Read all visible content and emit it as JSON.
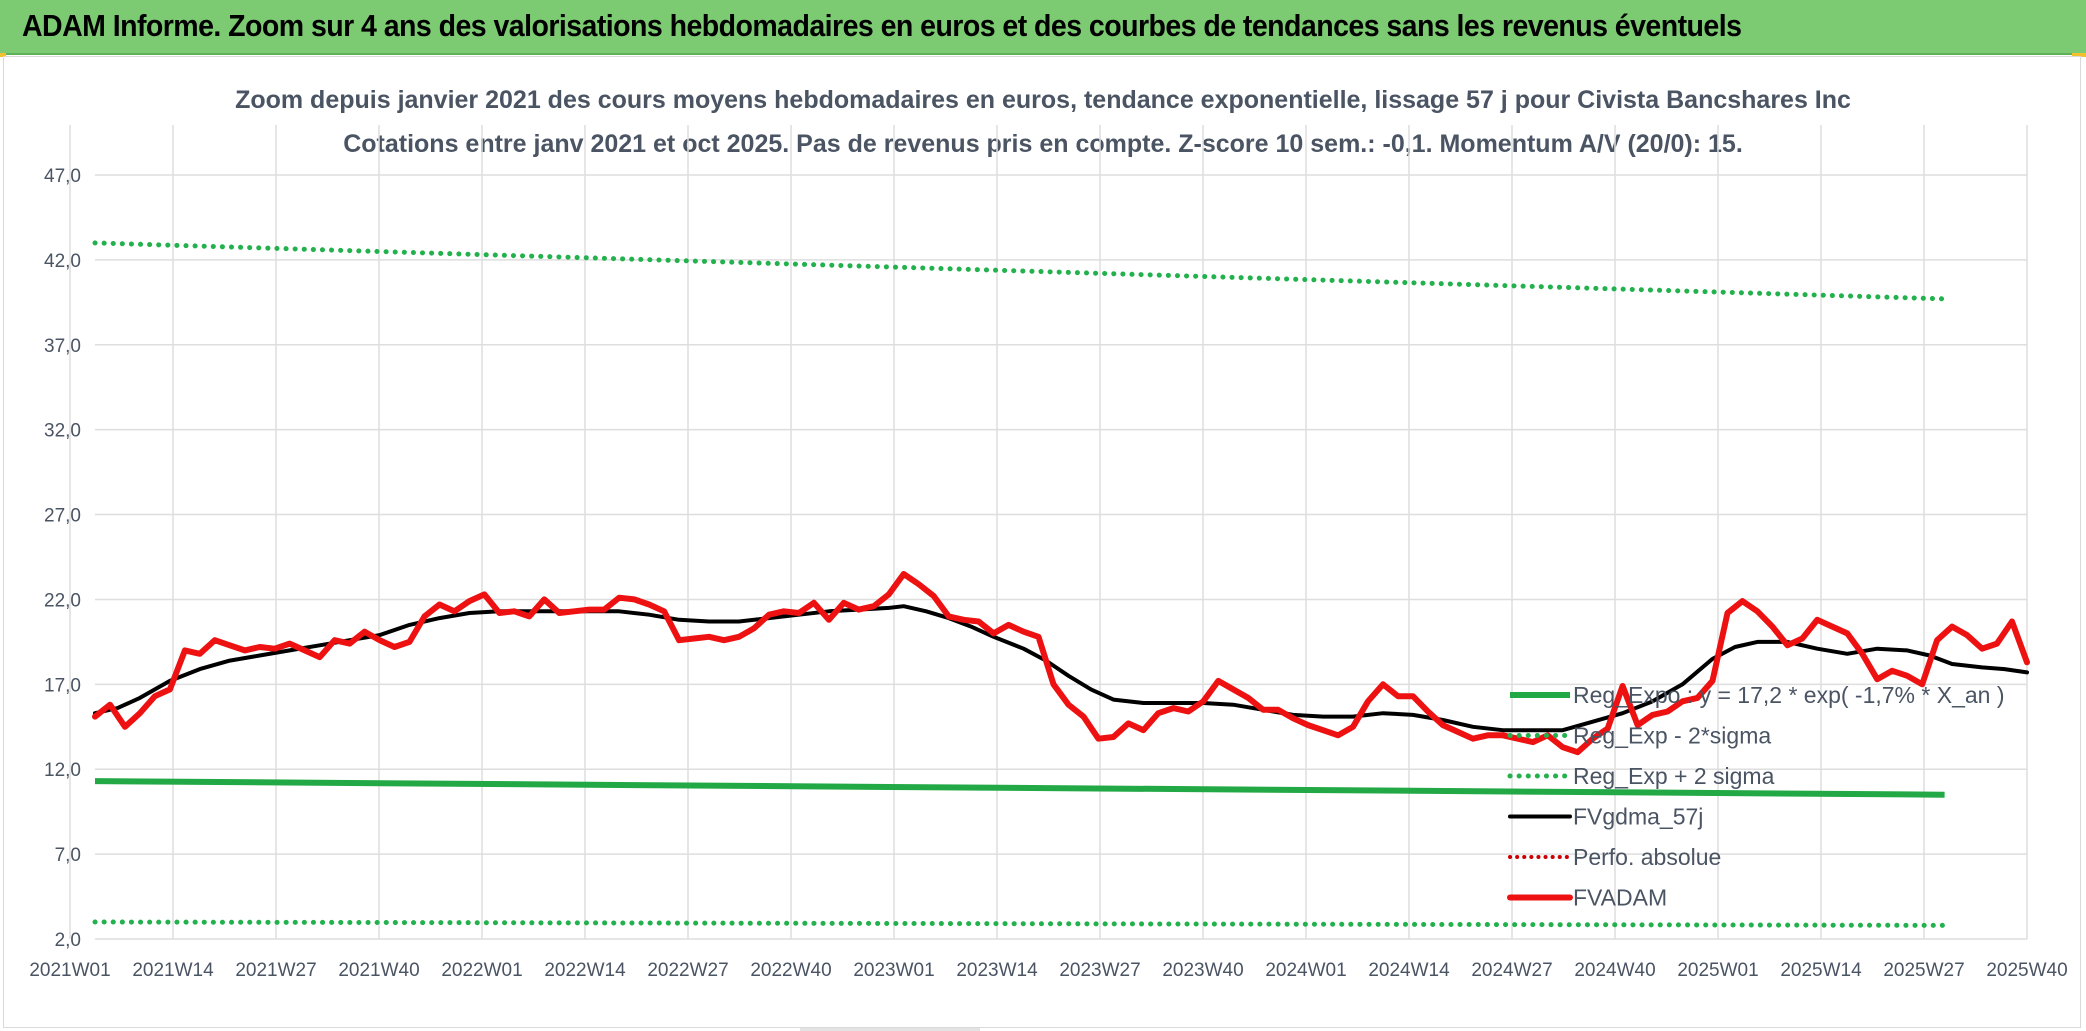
{
  "banner": {
    "title": "ADAM Informe. Zoom sur 4 ans des valorisations hebdomadaires en euros et des courbes de tendances sans les revenus éventuels"
  },
  "colors": {
    "banner_bg": "#7ccb72",
    "grid": "#dedede",
    "reg_expo": "#22a845",
    "sigma_bands": "#22b14c",
    "fvgdma": "#000000",
    "fvadam": "#ee1111",
    "perfo": "#cc0000"
  },
  "chart_data": {
    "type": "line",
    "title": "Zoom depuis janvier 2021 des cours moyens hebdomadaires en euros, tendance exponentielle, lissage 57 j pour Civista Bancshares Inc",
    "subtitle": "Cotations entre janv 2021 et oct 2025. Pas de revenus pris en compte. Z-score 10 sem.: -0,1. Momentum A/V (20/0): 15.",
    "xlabel": "",
    "ylabel": "",
    "ylim": [
      2.0,
      47.0
    ],
    "y_ticks": [
      "47,0",
      "42,0",
      "37,0",
      "32,0",
      "27,0",
      "22,0",
      "17,0",
      "12,0",
      "7,0",
      "2,0"
    ],
    "y_tick_values": [
      47,
      42,
      37,
      32,
      27,
      22,
      17,
      12,
      7,
      2
    ],
    "x_ticks": [
      "2021W01",
      "2021W14",
      "2021W27",
      "2021W40",
      "2022W01",
      "2022W14",
      "2022W27",
      "2022W40",
      "2023W01",
      "2023W14",
      "2023W27",
      "2023W40",
      "2024W01",
      "2024W14",
      "2024W27",
      "2024W40",
      "2025W01",
      "2025W14",
      "2025W27",
      "2025W40"
    ],
    "xlim": [
      0,
      247
    ],
    "legend_position": "right",
    "series": [
      {
        "name": "Reg_Expo : y = 17,2 * exp( -1,7% *  X_an )",
        "key": "reg_expo",
        "style": "solid-thick",
        "points": [
          [
            0,
            11.3
          ],
          [
            247,
            10.5
          ]
        ]
      },
      {
        "name": "Reg_Exp - 2*sigma",
        "key": "reg_minus",
        "style": "dotted",
        "points": [
          [
            0,
            3.0
          ],
          [
            247,
            2.8
          ]
        ]
      },
      {
        "name": "Reg_Exp + 2 sigma",
        "key": "reg_plus",
        "style": "dotted",
        "points": [
          [
            0,
            43.0
          ],
          [
            247,
            39.7
          ]
        ]
      },
      {
        "name": "FVgdma_57j",
        "key": "fvgdma",
        "style": "solid",
        "points": [
          [
            0,
            15.3
          ],
          [
            3,
            15.6
          ],
          [
            6,
            16.2
          ],
          [
            10,
            17.2
          ],
          [
            14,
            17.9
          ],
          [
            18,
            18.4
          ],
          [
            22,
            18.7
          ],
          [
            26,
            19.0
          ],
          [
            30,
            19.3
          ],
          [
            34,
            19.6
          ],
          [
            38,
            19.9
          ],
          [
            42,
            20.5
          ],
          [
            46,
            20.9
          ],
          [
            50,
            21.2
          ],
          [
            54,
            21.3
          ],
          [
            58,
            21.3
          ],
          [
            62,
            21.3
          ],
          [
            66,
            21.3
          ],
          [
            70,
            21.3
          ],
          [
            74,
            21.1
          ],
          [
            78,
            20.8
          ],
          [
            82,
            20.7
          ],
          [
            86,
            20.7
          ],
          [
            90,
            20.9
          ],
          [
            94,
            21.1
          ],
          [
            98,
            21.3
          ],
          [
            102,
            21.4
          ],
          [
            106,
            21.5
          ],
          [
            108,
            21.6
          ],
          [
            111,
            21.3
          ],
          [
            114,
            20.9
          ],
          [
            117,
            20.4
          ],
          [
            120,
            19.8
          ],
          [
            124,
            19.1
          ],
          [
            127,
            18.4
          ],
          [
            130,
            17.5
          ],
          [
            133,
            16.7
          ],
          [
            136,
            16.1
          ],
          [
            140,
            15.9
          ],
          [
            144,
            15.9
          ],
          [
            148,
            15.9
          ],
          [
            152,
            15.8
          ],
          [
            156,
            15.5
          ],
          [
            160,
            15.2
          ],
          [
            164,
            15.1
          ],
          [
            168,
            15.1
          ],
          [
            172,
            15.3
          ],
          [
            176,
            15.2
          ],
          [
            180,
            14.9
          ],
          [
            184,
            14.5
          ],
          [
            188,
            14.3
          ],
          [
            192,
            14.3
          ],
          [
            196,
            14.3
          ],
          [
            200,
            14.8
          ],
          [
            204,
            15.3
          ],
          [
            208,
            16.0
          ],
          [
            212,
            17.0
          ],
          [
            216,
            18.5
          ],
          [
            219,
            19.2
          ],
          [
            222,
            19.5
          ],
          [
            226,
            19.5
          ],
          [
            230,
            19.1
          ],
          [
            234,
            18.8
          ],
          [
            238,
            19.1
          ],
          [
            242,
            19.0
          ],
          [
            245,
            18.7
          ],
          [
            248,
            18.2
          ],
          [
            252,
            18.0
          ],
          [
            255,
            17.9
          ],
          [
            258,
            17.7
          ]
        ]
      },
      {
        "name": "Perfo. absolue",
        "key": "perfo",
        "style": "dotted-red",
        "points": []
      },
      {
        "name": "FVADAM",
        "key": "fvadam",
        "style": "solid-thick-red",
        "points": [
          [
            0,
            15.1
          ],
          [
            2,
            15.8
          ],
          [
            4,
            14.5
          ],
          [
            6,
            15.3
          ],
          [
            8,
            16.3
          ],
          [
            10,
            16.7
          ],
          [
            12,
            19.0
          ],
          [
            14,
            18.8
          ],
          [
            16,
            19.6
          ],
          [
            18,
            19.3
          ],
          [
            20,
            19.0
          ],
          [
            22,
            19.2
          ],
          [
            24,
            19.1
          ],
          [
            26,
            19.4
          ],
          [
            28,
            19.0
          ],
          [
            30,
            18.6
          ],
          [
            32,
            19.6
          ],
          [
            34,
            19.4
          ],
          [
            36,
            20.1
          ],
          [
            38,
            19.6
          ],
          [
            40,
            19.2
          ],
          [
            42,
            19.5
          ],
          [
            44,
            21.0
          ],
          [
            46,
            21.7
          ],
          [
            48,
            21.3
          ],
          [
            50,
            21.9
          ],
          [
            52,
            22.3
          ],
          [
            54,
            21.2
          ],
          [
            56,
            21.3
          ],
          [
            58,
            21.0
          ],
          [
            60,
            22.0
          ],
          [
            62,
            21.2
          ],
          [
            64,
            21.3
          ],
          [
            66,
            21.4
          ],
          [
            68,
            21.4
          ],
          [
            70,
            22.1
          ],
          [
            72,
            22.0
          ],
          [
            74,
            21.7
          ],
          [
            76,
            21.3
          ],
          [
            78,
            19.6
          ],
          [
            80,
            19.7
          ],
          [
            82,
            19.8
          ],
          [
            84,
            19.6
          ],
          [
            86,
            19.8
          ],
          [
            88,
            20.3
          ],
          [
            90,
            21.1
          ],
          [
            92,
            21.3
          ],
          [
            94,
            21.2
          ],
          [
            96,
            21.8
          ],
          [
            98,
            20.8
          ],
          [
            100,
            21.8
          ],
          [
            102,
            21.4
          ],
          [
            104,
            21.6
          ],
          [
            106,
            22.3
          ],
          [
            108,
            23.5
          ],
          [
            110,
            22.9
          ],
          [
            112,
            22.2
          ],
          [
            114,
            21.0
          ],
          [
            116,
            20.8
          ],
          [
            118,
            20.7
          ],
          [
            120,
            20.0
          ],
          [
            122,
            20.5
          ],
          [
            124,
            20.1
          ],
          [
            126,
            19.8
          ],
          [
            128,
            17.0
          ],
          [
            130,
            15.8
          ],
          [
            132,
            15.1
          ],
          [
            134,
            13.8
          ],
          [
            136,
            13.9
          ],
          [
            138,
            14.7
          ],
          [
            140,
            14.3
          ],
          [
            142,
            15.3
          ],
          [
            144,
            15.6
          ],
          [
            146,
            15.4
          ],
          [
            148,
            16.0
          ],
          [
            150,
            17.2
          ],
          [
            152,
            16.7
          ],
          [
            154,
            16.2
          ],
          [
            156,
            15.5
          ],
          [
            158,
            15.5
          ],
          [
            160,
            15.0
          ],
          [
            162,
            14.6
          ],
          [
            164,
            14.3
          ],
          [
            166,
            14.0
          ],
          [
            168,
            14.5
          ],
          [
            170,
            16.0
          ],
          [
            172,
            17.0
          ],
          [
            174,
            16.3
          ],
          [
            176,
            16.3
          ],
          [
            178,
            15.4
          ],
          [
            180,
            14.6
          ],
          [
            182,
            14.2
          ],
          [
            184,
            13.8
          ],
          [
            186,
            14.0
          ],
          [
            188,
            14.0
          ],
          [
            190,
            13.8
          ],
          [
            192,
            13.6
          ],
          [
            194,
            14.0
          ],
          [
            196,
            13.3
          ],
          [
            198,
            13.0
          ],
          [
            200,
            13.8
          ],
          [
            202,
            14.4
          ],
          [
            204,
            16.9
          ],
          [
            206,
            14.6
          ],
          [
            208,
            15.2
          ],
          [
            210,
            15.4
          ],
          [
            212,
            16.0
          ],
          [
            214,
            16.2
          ],
          [
            216,
            17.2
          ],
          [
            218,
            21.2
          ],
          [
            220,
            21.9
          ],
          [
            222,
            21.3
          ],
          [
            224,
            20.4
          ],
          [
            226,
            19.3
          ],
          [
            228,
            19.7
          ],
          [
            230,
            20.8
          ],
          [
            232,
            20.4
          ],
          [
            234,
            20.0
          ],
          [
            236,
            18.8
          ],
          [
            238,
            17.3
          ],
          [
            240,
            17.8
          ],
          [
            242,
            17.5
          ],
          [
            244,
            17.0
          ],
          [
            246,
            19.6
          ],
          [
            248,
            20.4
          ],
          [
            250,
            19.9
          ],
          [
            252,
            19.1
          ],
          [
            254,
            19.4
          ],
          [
            256,
            20.7
          ],
          [
            258,
            18.3
          ]
        ]
      }
    ],
    "legend": [
      "Reg_Expo : y = 17,2 * exp( -1,7% *  X_an )",
      "Reg_Exp - 2*sigma",
      "Reg_Exp + 2 sigma",
      "FVgdma_57j",
      "Perfo. absolue",
      "FVADAM"
    ]
  }
}
